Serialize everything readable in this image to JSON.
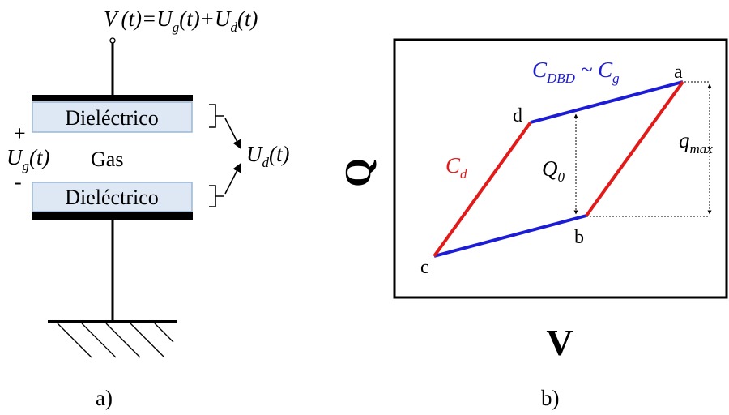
{
  "panel_a": {
    "formula": {
      "V": "V",
      "t1": "(t)",
      "eq": "=",
      "U": "U",
      "sub_g": "g",
      "t2": "(t)",
      "plus": "+",
      "U2": "U",
      "sub_d": "d",
      "t3": "(t)"
    },
    "dielectric_top": "Dieléctrico",
    "dielectric_bottom": "Dieléctrico",
    "gas": "Gas",
    "plus_sign": "+",
    "minus_sign": "-",
    "ug": {
      "U": "U",
      "sub": "g",
      "t": "(t)"
    },
    "ud": {
      "U": "U",
      "sub": "d",
      "t": "(t)"
    },
    "caption": "a)",
    "colors": {
      "dielectric_fill": "#dde8f4",
      "dielectric_stroke": "#9bb6d4",
      "electrode": "#000000"
    }
  },
  "panel_b": {
    "ylabel": "Q",
    "xlabel": "V",
    "cdbd": {
      "C": "C",
      "sub": "DBD",
      "sim": " ~ ",
      "C2": "C",
      "sub2": "g"
    },
    "cd": {
      "C": "C",
      "sub": "d"
    },
    "q0": {
      "Q": "Q",
      "sub": "0"
    },
    "qmax": {
      "q": "q",
      "sub": "max"
    },
    "points": {
      "a": "a",
      "b": "b",
      "c": "c",
      "d": "d"
    },
    "caption": "b)",
    "colors": {
      "blue": "#1c1cd6",
      "red": "#e21a1a"
    }
  }
}
